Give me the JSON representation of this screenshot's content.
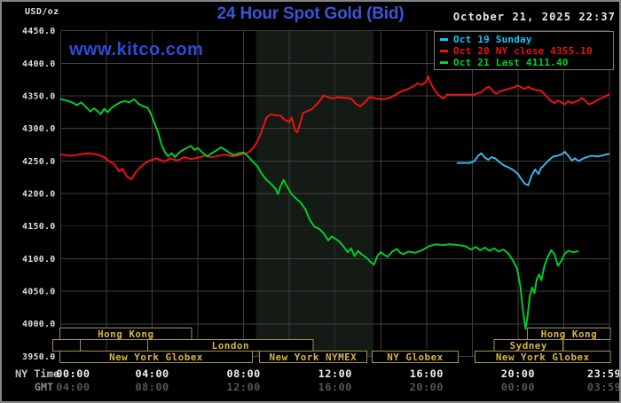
{
  "header": {
    "unit_label": "USD/oz",
    "title": "24 Hour Spot Gold (Bid)",
    "datetime": "October 21, 2025 22:37",
    "watermark": "www.kitco.com"
  },
  "legend": {
    "items": [
      {
        "label": "Oct 19 Sunday",
        "color": "#10c8fc"
      },
      {
        "label": "Oct 20 NY close 4355.10",
        "color": "#ee1212"
      },
      {
        "label": "Oct 21 Last 4111.40",
        "color": "#00d22a"
      }
    ]
  },
  "chart_data": {
    "type": "line",
    "title": "24 Hour Spot Gold (Bid)",
    "ylabel": "USD/oz",
    "ylim": [
      3950,
      4450
    ],
    "y_tick_step": 50,
    "y_ticks": [
      4450.0,
      4400.0,
      4350.0,
      4300.0,
      4250.0,
      4200.0,
      4150.0,
      4100.0,
      4050.0,
      4000.0,
      3950.0
    ],
    "x_axis_rows": {
      "ny_label": "NY Time",
      "gmt_label": "GMT"
    },
    "x_ticks": [
      {
        "h": 0,
        "ny": "00:00",
        "gmt": "04:00"
      },
      {
        "h": 4,
        "ny": "04:00",
        "gmt": "08:00"
      },
      {
        "h": 8,
        "ny": "08:00",
        "gmt": "12:00"
      },
      {
        "h": 12,
        "ny": "12:00",
        "gmt": "16:00"
      },
      {
        "h": 16,
        "ny": "16:00",
        "gmt": "20:00"
      },
      {
        "h": 20,
        "ny": "20:00",
        "gmt": "00:00"
      },
      {
        "h": 23.983,
        "ny": "23:59",
        "gmt": "03:59"
      }
    ],
    "grid": {
      "x_step_hours": 2,
      "color": "#3e3e3e"
    },
    "shaded_region": {
      "start": 8.54,
      "end": 13.68,
      "color": "#141a14"
    },
    "sessions": [
      {
        "label": "Hong Kong",
        "row": 0,
        "start": -0.04,
        "end": 5.73
      },
      {
        "label": "Hong Kong",
        "row": 0,
        "start": 20.42,
        "end": 24.04
      },
      {
        "label": "",
        "row": 1,
        "start": -0.35,
        "end": 0.85
      },
      {
        "label": "London",
        "row": 1,
        "start": 3.81,
        "end": 11.04
      },
      {
        "label": "Sydney",
        "row": 1,
        "start": 18.96,
        "end": 21.96
      },
      {
        "label": "New York Globex",
        "row": 2,
        "start": -0.04,
        "end": 8.38
      },
      {
        "label": "New York NYMEX",
        "row": 2,
        "start": 8.69,
        "end": 13.38
      },
      {
        "label": "NY Globex",
        "row": 2,
        "start": 13.62,
        "end": 17.38
      },
      {
        "label": "New York Globex",
        "row": 2,
        "start": 18.12,
        "end": 24.04
      }
    ],
    "series": [
      {
        "name": "Oct 19 Sunday",
        "color": "#36b6e8",
        "points": [
          [
            17.35,
            4247
          ],
          [
            17.6,
            4247
          ],
          [
            17.9,
            4247
          ],
          [
            18.1,
            4250
          ],
          [
            18.25,
            4258
          ],
          [
            18.4,
            4262
          ],
          [
            18.55,
            4255
          ],
          [
            18.7,
            4252
          ],
          [
            18.85,
            4256
          ],
          [
            19.0,
            4254
          ],
          [
            19.2,
            4248
          ],
          [
            19.4,
            4243
          ],
          [
            19.6,
            4240
          ],
          [
            19.8,
            4236
          ],
          [
            20.0,
            4230
          ],
          [
            20.15,
            4222
          ],
          [
            20.3,
            4215
          ],
          [
            20.45,
            4213
          ],
          [
            20.6,
            4228
          ],
          [
            20.75,
            4237
          ],
          [
            20.9,
            4230
          ],
          [
            21.0,
            4239
          ],
          [
            21.1,
            4242
          ],
          [
            21.25,
            4248
          ],
          [
            21.4,
            4253
          ],
          [
            21.55,
            4257
          ],
          [
            21.7,
            4258
          ],
          [
            21.9,
            4260
          ],
          [
            22.05,
            4264
          ],
          [
            22.2,
            4258
          ],
          [
            22.35,
            4251
          ],
          [
            22.5,
            4254
          ],
          [
            22.65,
            4250
          ],
          [
            22.8,
            4253
          ],
          [
            23.0,
            4256
          ],
          [
            23.2,
            4258
          ],
          [
            23.5,
            4257
          ],
          [
            23.75,
            4259
          ],
          [
            23.98,
            4261
          ]
        ]
      },
      {
        "name": "Oct 20",
        "color": "#ee1212",
        "points": [
          [
            0,
            4260
          ],
          [
            0.4,
            4258
          ],
          [
            0.8,
            4260
          ],
          [
            1.2,
            4262
          ],
          [
            1.6,
            4260
          ],
          [
            1.9,
            4256
          ],
          [
            2.1,
            4250
          ],
          [
            2.35,
            4245
          ],
          [
            2.55,
            4234
          ],
          [
            2.7,
            4238
          ],
          [
            2.9,
            4226
          ],
          [
            3.1,
            4222
          ],
          [
            3.3,
            4234
          ],
          [
            3.5,
            4241
          ],
          [
            3.7,
            4247
          ],
          [
            3.9,
            4251
          ],
          [
            4.2,
            4254
          ],
          [
            4.5,
            4249
          ],
          [
            4.8,
            4254
          ],
          [
            5.1,
            4251
          ],
          [
            5.4,
            4256
          ],
          [
            5.7,
            4253
          ],
          [
            6.0,
            4255
          ],
          [
            6.3,
            4258
          ],
          [
            6.6,
            4256
          ],
          [
            6.9,
            4258
          ],
          [
            7.2,
            4260
          ],
          [
            7.5,
            4257
          ],
          [
            7.8,
            4259
          ],
          [
            8.0,
            4261
          ],
          [
            8.2,
            4263
          ],
          [
            8.4,
            4269
          ],
          [
            8.6,
            4280
          ],
          [
            8.75,
            4292
          ],
          [
            9.0,
            4317
          ],
          [
            9.2,
            4322
          ],
          [
            9.4,
            4320
          ],
          [
            9.6,
            4320
          ],
          [
            9.8,
            4313
          ],
          [
            10.0,
            4310
          ],
          [
            10.1,
            4317
          ],
          [
            10.25,
            4297
          ],
          [
            10.35,
            4294
          ],
          [
            10.6,
            4324
          ],
          [
            10.8,
            4327
          ],
          [
            11.0,
            4330
          ],
          [
            11.3,
            4341
          ],
          [
            11.5,
            4351
          ],
          [
            11.7,
            4348
          ],
          [
            11.9,
            4346
          ],
          [
            12.1,
            4348
          ],
          [
            12.4,
            4347
          ],
          [
            12.7,
            4346
          ],
          [
            12.9,
            4338
          ],
          [
            13.1,
            4334
          ],
          [
            13.3,
            4340
          ],
          [
            13.5,
            4348
          ],
          [
            13.8,
            4346
          ],
          [
            14.1,
            4345
          ],
          [
            14.4,
            4347
          ],
          [
            14.6,
            4351
          ],
          [
            14.9,
            4357
          ],
          [
            15.15,
            4360
          ],
          [
            15.4,
            4364
          ],
          [
            15.6,
            4369
          ],
          [
            15.8,
            4367
          ],
          [
            16.0,
            4372
          ],
          [
            16.07,
            4380
          ],
          [
            16.15,
            4372
          ],
          [
            16.3,
            4362
          ],
          [
            16.45,
            4354
          ],
          [
            16.6,
            4349
          ],
          [
            16.75,
            4346
          ],
          [
            16.9,
            4352
          ],
          [
            17.2,
            4352
          ],
          [
            17.5,
            4352
          ],
          [
            17.8,
            4352
          ],
          [
            18.1,
            4352
          ],
          [
            18.4,
            4356
          ],
          [
            18.6,
            4362
          ],
          [
            18.75,
            4364
          ],
          [
            18.9,
            4357
          ],
          [
            19.05,
            4353
          ],
          [
            19.2,
            4357
          ],
          [
            19.4,
            4359
          ],
          [
            19.6,
            4361
          ],
          [
            19.8,
            4363
          ],
          [
            20.0,
            4366
          ],
          [
            20.15,
            4363
          ],
          [
            20.3,
            4361
          ],
          [
            20.45,
            4364
          ],
          [
            20.6,
            4361
          ],
          [
            20.8,
            4359
          ],
          [
            21.0,
            4358
          ],
          [
            21.15,
            4353
          ],
          [
            21.3,
            4347
          ],
          [
            21.45,
            4342
          ],
          [
            21.6,
            4339
          ],
          [
            21.75,
            4343
          ],
          [
            21.9,
            4340
          ],
          [
            22.05,
            4337
          ],
          [
            22.2,
            4342
          ],
          [
            22.35,
            4339
          ],
          [
            22.5,
            4341
          ],
          [
            22.65,
            4343
          ],
          [
            22.8,
            4347
          ],
          [
            22.95,
            4342
          ],
          [
            23.1,
            4337
          ],
          [
            23.25,
            4339
          ],
          [
            23.4,
            4342
          ],
          [
            23.55,
            4345
          ],
          [
            23.7,
            4347
          ],
          [
            23.85,
            4350
          ],
          [
            23.98,
            4352
          ]
        ]
      },
      {
        "name": "Oct 21",
        "color": "#00cd28",
        "points": [
          [
            0,
            4345
          ],
          [
            0.25,
            4343
          ],
          [
            0.5,
            4340
          ],
          [
            0.7,
            4336
          ],
          [
            0.9,
            4340
          ],
          [
            1.1,
            4333
          ],
          [
            1.3,
            4326
          ],
          [
            1.45,
            4331
          ],
          [
            1.6,
            4327
          ],
          [
            1.75,
            4322
          ],
          [
            1.9,
            4330
          ],
          [
            2.05,
            4325
          ],
          [
            2.2,
            4331
          ],
          [
            2.4,
            4336
          ],
          [
            2.6,
            4340
          ],
          [
            2.8,
            4342
          ],
          [
            3.0,
            4340
          ],
          [
            3.2,
            4345
          ],
          [
            3.4,
            4338
          ],
          [
            3.6,
            4334
          ],
          [
            3.8,
            4332
          ],
          [
            3.95,
            4322
          ],
          [
            4.1,
            4308
          ],
          [
            4.25,
            4295
          ],
          [
            4.4,
            4276
          ],
          [
            4.55,
            4264
          ],
          [
            4.7,
            4257
          ],
          [
            4.85,
            4262
          ],
          [
            5.0,
            4256
          ],
          [
            5.15,
            4262
          ],
          [
            5.3,
            4266
          ],
          [
            5.5,
            4270
          ],
          [
            5.7,
            4273
          ],
          [
            5.85,
            4267
          ],
          [
            6.0,
            4270
          ],
          [
            6.2,
            4263
          ],
          [
            6.4,
            4257
          ],
          [
            6.6,
            4262
          ],
          [
            6.8,
            4266
          ],
          [
            7.0,
            4271
          ],
          [
            7.2,
            4267
          ],
          [
            7.4,
            4262
          ],
          [
            7.6,
            4259
          ],
          [
            7.8,
            4262
          ],
          [
            8.0,
            4263
          ],
          [
            8.2,
            4257
          ],
          [
            8.4,
            4249
          ],
          [
            8.6,
            4242
          ],
          [
            8.8,
            4230
          ],
          [
            9.0,
            4221
          ],
          [
            9.2,
            4215
          ],
          [
            9.4,
            4207
          ],
          [
            9.5,
            4199
          ],
          [
            9.62,
            4212
          ],
          [
            9.75,
            4221
          ],
          [
            9.9,
            4211
          ],
          [
            10.1,
            4199
          ],
          [
            10.3,
            4192
          ],
          [
            10.5,
            4186
          ],
          [
            10.7,
            4176
          ],
          [
            10.9,
            4159
          ],
          [
            11.1,
            4149
          ],
          [
            11.3,
            4146
          ],
          [
            11.5,
            4139
          ],
          [
            11.7,
            4128
          ],
          [
            11.85,
            4134
          ],
          [
            12.0,
            4131
          ],
          [
            12.2,
            4126
          ],
          [
            12.4,
            4117
          ],
          [
            12.55,
            4110
          ],
          [
            12.7,
            4116
          ],
          [
            12.85,
            4104
          ],
          [
            13.0,
            4112
          ],
          [
            13.15,
            4107
          ],
          [
            13.35,
            4102
          ],
          [
            13.55,
            4095
          ],
          [
            13.7,
            4091
          ],
          [
            13.85,
            4104
          ],
          [
            14.0,
            4110
          ],
          [
            14.15,
            4106
          ],
          [
            14.3,
            4103
          ],
          [
            14.5,
            4111
          ],
          [
            14.7,
            4115
          ],
          [
            14.85,
            4109
          ],
          [
            15.0,
            4107
          ],
          [
            15.2,
            4111
          ],
          [
            15.5,
            4109
          ],
          [
            15.8,
            4113
          ],
          [
            16.1,
            4119
          ],
          [
            16.4,
            4122
          ],
          [
            16.7,
            4121
          ],
          [
            17.0,
            4122
          ],
          [
            17.4,
            4121
          ],
          [
            17.7,
            4119
          ],
          [
            17.95,
            4114
          ],
          [
            18.15,
            4118
          ],
          [
            18.35,
            4113
          ],
          [
            18.55,
            4117
          ],
          [
            18.75,
            4112
          ],
          [
            18.95,
            4116
          ],
          [
            19.15,
            4111
          ],
          [
            19.35,
            4114
          ],
          [
            19.55,
            4109
          ],
          [
            19.75,
            4099
          ],
          [
            19.95,
            4086
          ],
          [
            20.1,
            4058
          ],
          [
            20.22,
            4020
          ],
          [
            20.33,
            3992
          ],
          [
            20.42,
            4012
          ],
          [
            20.52,
            4043
          ],
          [
            20.62,
            4056
          ],
          [
            20.72,
            4047
          ],
          [
            20.82,
            4068
          ],
          [
            20.92,
            4076
          ],
          [
            21.02,
            4067
          ],
          [
            21.15,
            4088
          ],
          [
            21.3,
            4103
          ],
          [
            21.45,
            4113
          ],
          [
            21.6,
            4107
          ],
          [
            21.75,
            4089
          ],
          [
            21.9,
            4097
          ],
          [
            22.05,
            4108
          ],
          [
            22.2,
            4112
          ],
          [
            22.4,
            4110
          ],
          [
            22.62,
            4111.4
          ]
        ]
      }
    ]
  }
}
